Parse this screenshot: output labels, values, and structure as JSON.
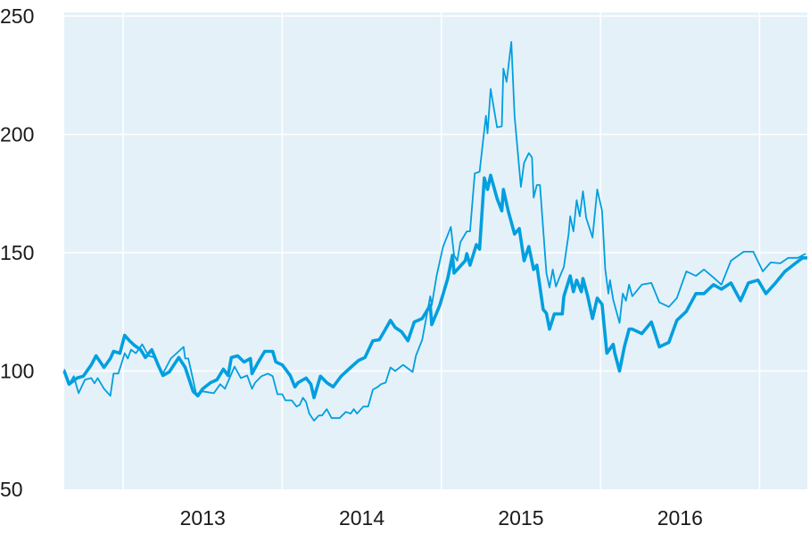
{
  "chart_data": {
    "type": "line",
    "title": "",
    "xlabel": "",
    "ylabel": "",
    "xlim": [
      2012.63,
      2017.3
    ],
    "ylim": [
      50,
      250
    ],
    "yticks": [
      50,
      100,
      150,
      200,
      250
    ],
    "ytick_labels": [
      "50",
      "100",
      "150",
      "200",
      "250"
    ],
    "xgrid_years": [
      2013,
      2014,
      2015,
      2016,
      2017
    ],
    "xtick_labels": [
      {
        "label": "2013",
        "at": 2013.5
      },
      {
        "label": "2014",
        "at": 2014.5
      },
      {
        "label": "2015",
        "at": 2015.5
      },
      {
        "label": "2016",
        "at": 2016.5
      }
    ],
    "grid": true,
    "legend": "none",
    "colors": {
      "background": "#e5f1f9",
      "grid": "#ffffff",
      "line": "#009fdf"
    },
    "series": [
      {
        "style": "thin",
        "points": [
          [
            2012.63,
            100.8
          ],
          [
            2012.66,
            94.4
          ],
          [
            2012.69,
            97.8
          ],
          [
            2012.72,
            90.6
          ],
          [
            2012.76,
            96.3
          ],
          [
            2012.8,
            97
          ],
          [
            2012.82,
            94.8
          ],
          [
            2012.84,
            97
          ],
          [
            2012.88,
            92.5
          ],
          [
            2012.92,
            89.5
          ],
          [
            2012.94,
            98.9
          ],
          [
            2012.97,
            98.9
          ],
          [
            2013.01,
            107.5
          ],
          [
            2013.03,
            105.3
          ],
          [
            2013.05,
            109
          ],
          [
            2013.08,
            107.5
          ],
          [
            2013.12,
            111.3
          ],
          [
            2013.16,
            106.4
          ],
          [
            2013.2,
            105.7
          ],
          [
            2013.25,
            98.9
          ],
          [
            2013.3,
            105.3
          ],
          [
            2013.38,
            110.2
          ],
          [
            2013.39,
            105.3
          ],
          [
            2013.41,
            105.3
          ],
          [
            2013.46,
            90.2
          ],
          [
            2013.5,
            91.4
          ],
          [
            2013.57,
            90.6
          ],
          [
            2013.61,
            94.4
          ],
          [
            2013.64,
            92.5
          ],
          [
            2013.7,
            101.9
          ],
          [
            2013.74,
            97
          ],
          [
            2013.78,
            98.1
          ],
          [
            2013.81,
            92.5
          ],
          [
            2013.83,
            95.1
          ],
          [
            2013.87,
            97.8
          ],
          [
            2013.91,
            98.9
          ],
          [
            2013.94,
            97.8
          ],
          [
            2013.97,
            90.2
          ],
          [
            2014.0,
            90.2
          ],
          [
            2014.02,
            87.6
          ],
          [
            2014.06,
            87.6
          ],
          [
            2014.09,
            85
          ],
          [
            2014.11,
            85.7
          ],
          [
            2014.13,
            88.7
          ],
          [
            2014.15,
            86.9
          ],
          [
            2014.17,
            82
          ],
          [
            2014.2,
            79
          ],
          [
            2014.23,
            81.2
          ],
          [
            2014.25,
            81.2
          ],
          [
            2014.28,
            83.9
          ],
          [
            2014.31,
            80.1
          ],
          [
            2014.36,
            80.1
          ],
          [
            2014.4,
            82.7
          ],
          [
            2014.43,
            82
          ],
          [
            2014.45,
            83.9
          ],
          [
            2014.47,
            82
          ],
          [
            2014.51,
            85
          ],
          [
            2014.54,
            85
          ],
          [
            2014.57,
            92.1
          ],
          [
            2014.6,
            93.3
          ],
          [
            2014.62,
            94.4
          ],
          [
            2014.65,
            95.1
          ],
          [
            2014.68,
            101.5
          ],
          [
            2014.71,
            100
          ],
          [
            2014.76,
            102.6
          ],
          [
            2014.82,
            99.6
          ],
          [
            2014.84,
            106.4
          ],
          [
            2014.88,
            113.2
          ],
          [
            2014.93,
            131.6
          ],
          [
            2014.94,
            127.8
          ],
          [
            2014.97,
            140.2
          ],
          [
            2015.01,
            152.3
          ],
          [
            2015.06,
            160.9
          ],
          [
            2015.08,
            148.9
          ],
          [
            2015.1,
            146.6
          ],
          [
            2015.12,
            154.5
          ],
          [
            2015.16,
            159
          ],
          [
            2015.18,
            159
          ],
          [
            2015.21,
            183.5
          ],
          [
            2015.24,
            184.2
          ],
          [
            2015.28,
            207.9
          ],
          [
            2015.29,
            200.4
          ],
          [
            2015.31,
            219.2
          ],
          [
            2015.35,
            203
          ],
          [
            2015.38,
            203.4
          ],
          [
            2015.39,
            227.8
          ],
          [
            2015.41,
            222.2
          ],
          [
            2015.44,
            239.1
          ],
          [
            2015.46,
            207.9
          ],
          [
            2015.5,
            177.8
          ],
          [
            2015.52,
            188
          ],
          [
            2015.55,
            192.1
          ],
          [
            2015.57,
            190.2
          ],
          [
            2015.58,
            173.3
          ],
          [
            2015.6,
            178.6
          ],
          [
            2015.62,
            178.6
          ],
          [
            2015.66,
            141.4
          ],
          [
            2015.68,
            135.3
          ],
          [
            2015.7,
            142.9
          ],
          [
            2015.72,
            135.7
          ],
          [
            2015.74,
            139.1
          ],
          [
            2015.77,
            144
          ],
          [
            2015.8,
            157.9
          ],
          [
            2015.81,
            165.4
          ],
          [
            2015.83,
            159
          ],
          [
            2015.85,
            172.2
          ],
          [
            2015.87,
            165.4
          ],
          [
            2015.89,
            176
          ],
          [
            2015.91,
            164.7
          ],
          [
            2015.95,
            156.4
          ],
          [
            2015.98,
            176.7
          ],
          [
            2016.01,
            167.7
          ],
          [
            2016.03,
            142.9
          ],
          [
            2016.05,
            132.7
          ],
          [
            2016.06,
            138.4
          ],
          [
            2016.08,
            130.1
          ],
          [
            2016.12,
            120.3
          ],
          [
            2016.14,
            132.7
          ],
          [
            2016.16,
            129.7
          ],
          [
            2016.18,
            136.5
          ],
          [
            2016.2,
            131.6
          ],
          [
            2016.26,
            136.5
          ],
          [
            2016.32,
            137.2
          ],
          [
            2016.37,
            129
          ],
          [
            2016.43,
            127.1
          ],
          [
            2016.48,
            130.8
          ],
          [
            2016.54,
            142.1
          ],
          [
            2016.6,
            140.2
          ],
          [
            2016.65,
            142.9
          ],
          [
            2016.71,
            139.5
          ],
          [
            2016.76,
            136.5
          ],
          [
            2016.82,
            146.6
          ],
          [
            2016.9,
            150.4
          ],
          [
            2016.96,
            150.4
          ],
          [
            2017.02,
            142.1
          ],
          [
            2017.07,
            145.9
          ],
          [
            2017.13,
            145.5
          ],
          [
            2017.18,
            147.8
          ],
          [
            2017.24,
            147.8
          ],
          [
            2017.29,
            149.6
          ]
        ]
      },
      {
        "style": "thick",
        "points": [
          [
            2012.63,
            100
          ],
          [
            2012.66,
            94.4
          ],
          [
            2012.71,
            97
          ],
          [
            2012.75,
            97.8
          ],
          [
            2012.8,
            102.6
          ],
          [
            2012.83,
            106.4
          ],
          [
            2012.88,
            101.5
          ],
          [
            2012.92,
            105.3
          ],
          [
            2012.94,
            108.3
          ],
          [
            2012.98,
            107.5
          ],
          [
            2013.01,
            115.1
          ],
          [
            2013.04,
            112.8
          ],
          [
            2013.07,
            110.9
          ],
          [
            2013.11,
            109
          ],
          [
            2013.14,
            105.7
          ],
          [
            2013.18,
            109
          ],
          [
            2013.22,
            102.6
          ],
          [
            2013.25,
            98.1
          ],
          [
            2013.29,
            99.6
          ],
          [
            2013.35,
            105.7
          ],
          [
            2013.39,
            101.5
          ],
          [
            2013.44,
            91.4
          ],
          [
            2013.47,
            89.5
          ],
          [
            2013.5,
            92.5
          ],
          [
            2013.55,
            95.1
          ],
          [
            2013.59,
            96.3
          ],
          [
            2013.63,
            100.8
          ],
          [
            2013.66,
            98.1
          ],
          [
            2013.68,
            105.7
          ],
          [
            2013.72,
            106.4
          ],
          [
            2013.76,
            103.8
          ],
          [
            2013.8,
            105.3
          ],
          [
            2013.81,
            98.9
          ],
          [
            2013.85,
            103.8
          ],
          [
            2013.89,
            108.3
          ],
          [
            2013.94,
            108.3
          ],
          [
            2013.96,
            103.8
          ],
          [
            2014.0,
            102.6
          ],
          [
            2014.05,
            98.1
          ],
          [
            2014.08,
            93.3
          ],
          [
            2014.1,
            95.1
          ],
          [
            2014.15,
            97
          ],
          [
            2014.18,
            94.4
          ],
          [
            2014.2,
            88.7
          ],
          [
            2014.24,
            97.8
          ],
          [
            2014.28,
            95.1
          ],
          [
            2014.32,
            93.3
          ],
          [
            2014.37,
            97.8
          ],
          [
            2014.43,
            101.5
          ],
          [
            2014.48,
            104.5
          ],
          [
            2014.52,
            105.7
          ],
          [
            2014.57,
            112.8
          ],
          [
            2014.61,
            113.2
          ],
          [
            2014.64,
            116.6
          ],
          [
            2014.68,
            121.4
          ],
          [
            2014.71,
            118.4
          ],
          [
            2014.75,
            116.6
          ],
          [
            2014.79,
            112.8
          ],
          [
            2014.83,
            120.7
          ],
          [
            2014.88,
            122.2
          ],
          [
            2014.93,
            127.8
          ],
          [
            2014.94,
            119.6
          ],
          [
            2014.99,
            127.8
          ],
          [
            2015.04,
            139.1
          ],
          [
            2015.07,
            148.9
          ],
          [
            2015.08,
            141.4
          ],
          [
            2015.15,
            146.6
          ],
          [
            2015.16,
            149.6
          ],
          [
            2015.18,
            144.7
          ],
          [
            2015.22,
            153.4
          ],
          [
            2015.24,
            151.5
          ],
          [
            2015.27,
            181.6
          ],
          [
            2015.29,
            176.7
          ],
          [
            2015.31,
            182.7
          ],
          [
            2015.35,
            172.9
          ],
          [
            2015.38,
            167.7
          ],
          [
            2015.39,
            176.7
          ],
          [
            2015.42,
            167.7
          ],
          [
            2015.46,
            157.9
          ],
          [
            2015.49,
            160.2
          ],
          [
            2015.52,
            146.6
          ],
          [
            2015.55,
            152.6
          ],
          [
            2015.58,
            142.9
          ],
          [
            2015.6,
            144.7
          ],
          [
            2015.64,
            126
          ],
          [
            2015.66,
            124.4
          ],
          [
            2015.68,
            117.7
          ],
          [
            2015.71,
            124.1
          ],
          [
            2015.76,
            124.1
          ],
          [
            2015.77,
            131.6
          ],
          [
            2015.81,
            140.2
          ],
          [
            2015.83,
            133.5
          ],
          [
            2015.85,
            138.4
          ],
          [
            2015.88,
            133.5
          ],
          [
            2015.89,
            139.1
          ],
          [
            2015.92,
            131.6
          ],
          [
            2015.95,
            122.2
          ],
          [
            2015.98,
            130.8
          ],
          [
            2016.01,
            128.2
          ],
          [
            2016.04,
            107.5
          ],
          [
            2016.08,
            111.3
          ],
          [
            2016.09,
            107.5
          ],
          [
            2016.12,
            100
          ],
          [
            2016.15,
            110.2
          ],
          [
            2016.18,
            117.7
          ],
          [
            2016.2,
            117.7
          ],
          [
            2016.26,
            115.8
          ],
          [
            2016.32,
            120.7
          ],
          [
            2016.37,
            110.2
          ],
          [
            2016.43,
            112.1
          ],
          [
            2016.48,
            121.4
          ],
          [
            2016.54,
            125.2
          ],
          [
            2016.6,
            132.7
          ],
          [
            2016.65,
            132.7
          ],
          [
            2016.71,
            136.5
          ],
          [
            2016.76,
            134.6
          ],
          [
            2016.82,
            137.2
          ],
          [
            2016.88,
            129.7
          ],
          [
            2016.93,
            137.2
          ],
          [
            2016.99,
            138.4
          ],
          [
            2017.04,
            132.7
          ],
          [
            2017.1,
            137.2
          ],
          [
            2017.16,
            142.1
          ],
          [
            2017.21,
            144.7
          ],
          [
            2017.27,
            147.8
          ],
          [
            2017.3,
            147.8
          ]
        ]
      }
    ]
  }
}
